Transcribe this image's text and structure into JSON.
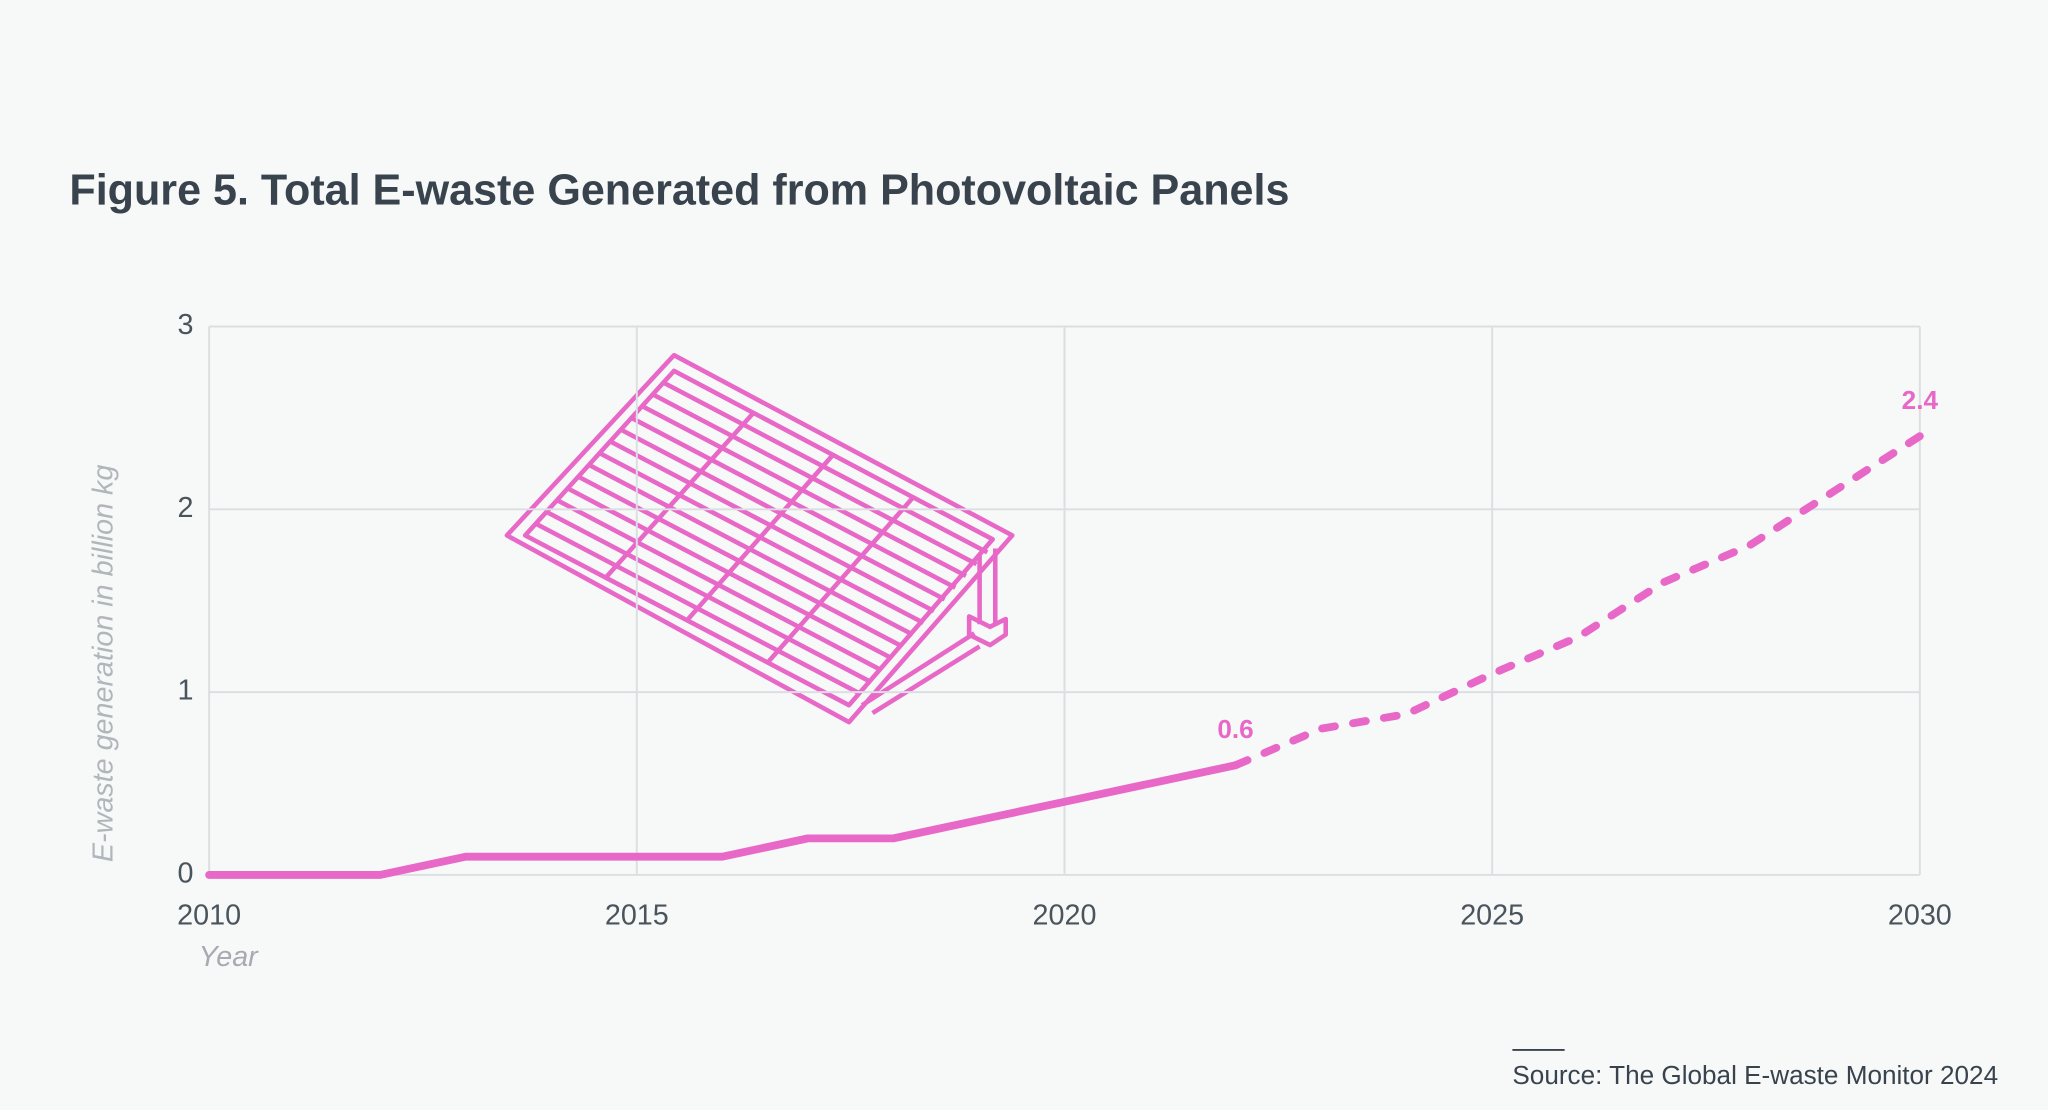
{
  "chart_data": {
    "type": "line",
    "title": "Figure 5. Total E-waste Generated from Photovoltaic Panels",
    "y_label": "E-waste generation in billion kg",
    "x_label": "Year",
    "source": "Source: The Global E-waste Monitor 2024",
    "x": [
      2010,
      2011,
      2012,
      2013,
      2014,
      2015,
      2016,
      2017,
      2018,
      2019,
      2020,
      2021,
      2022,
      2023,
      2024,
      2025,
      2026,
      2027,
      2028,
      2029,
      2030
    ],
    "series": [
      {
        "color": "#e868c8",
        "dashed": false,
        "label_last": true,
        "values": [
          0,
          0,
          0,
          0.1,
          0.1,
          0.1,
          0.1,
          0.2,
          0.2,
          0.3,
          0.4,
          0.5,
          0.6,
          null,
          null,
          null,
          null,
          null,
          null,
          null,
          null
        ]
      },
      {
        "color": "#e868c8",
        "dashed": true,
        "label_last": true,
        "values": [
          null,
          null,
          null,
          null,
          null,
          null,
          null,
          null,
          null,
          null,
          null,
          null,
          0.6,
          0.8,
          0.88,
          1.1,
          1.3,
          1.6,
          1.8,
          2.1,
          2.4
        ]
      }
    ],
    "xlim": [
      2010,
      2030
    ],
    "xticks": [
      2010,
      2015,
      2020,
      2025,
      2030
    ],
    "ylim": [
      0,
      3
    ],
    "yticks": [
      0,
      1,
      2,
      3
    ],
    "grid": true
  }
}
